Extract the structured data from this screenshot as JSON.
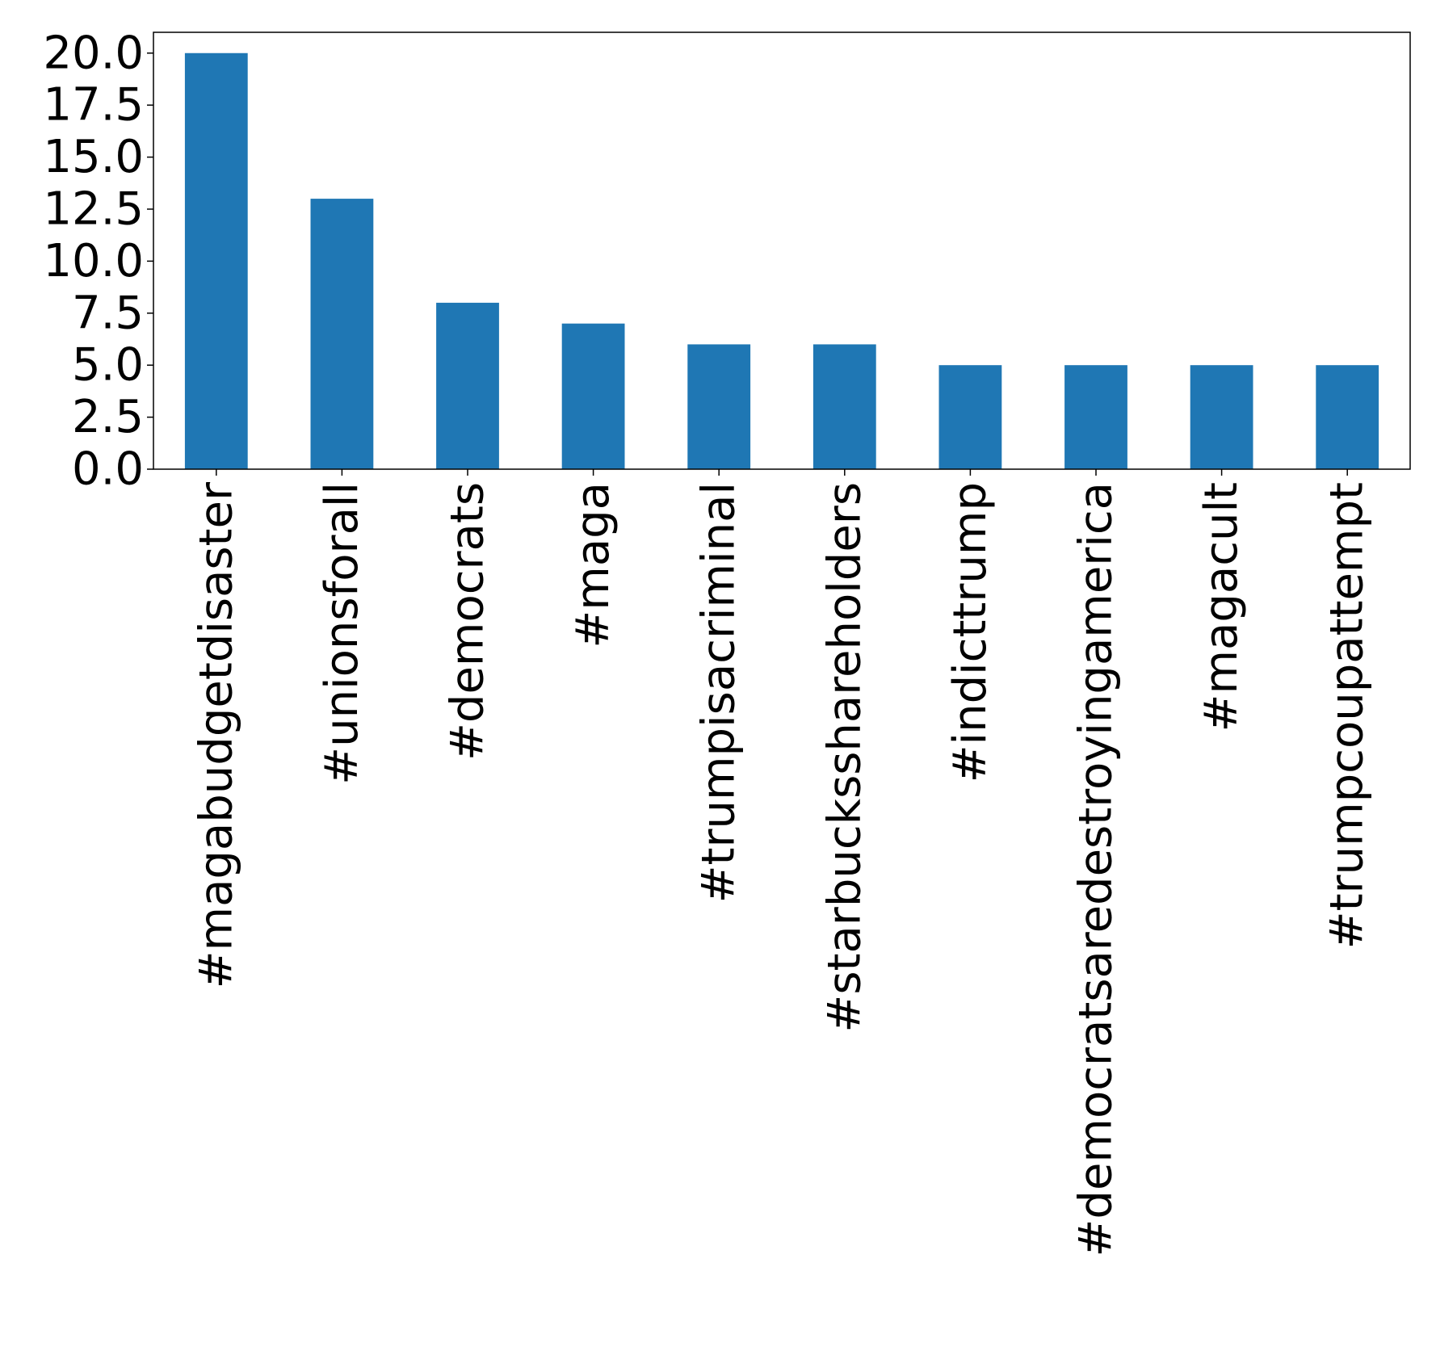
{
  "chart_data": {
    "type": "bar",
    "categories": [
      "#magabudgetdisaster",
      "#unionsforall",
      "#democrats",
      "#maga",
      "#trumpisacriminal",
      "#starbucksshareholders",
      "#indicttrump",
      "#democratsaredestroyingamerica",
      "#magacult",
      "#trumpcoupattempt"
    ],
    "values": [
      20,
      13,
      8,
      7,
      6,
      6,
      5,
      5,
      5,
      5
    ],
    "title": "",
    "xlabel": "",
    "ylabel": "",
    "ylim": [
      0,
      21
    ],
    "yticks": [
      "0.0",
      "2.5",
      "5.0",
      "7.5",
      "10.0",
      "12.5",
      "15.0",
      "17.5",
      "20.0"
    ],
    "grid": false,
    "legend": "none",
    "bar_color": "#1f77b4"
  }
}
